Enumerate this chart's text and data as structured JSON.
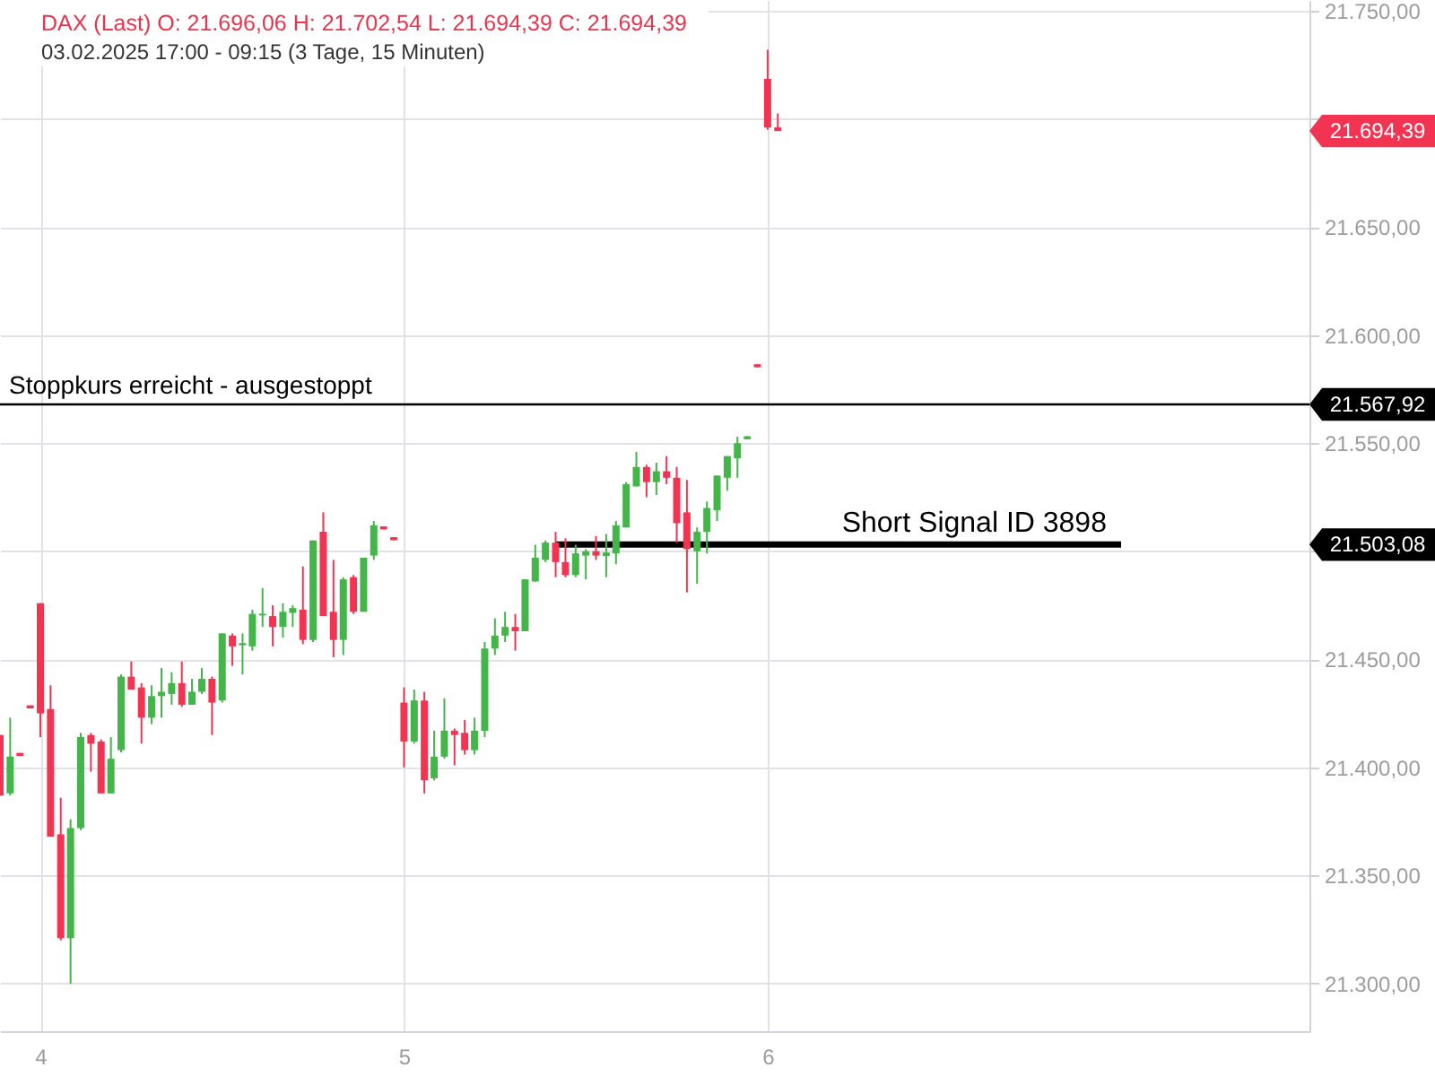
{
  "chart_data": {
    "type": "candlestick",
    "title": "DAX (Last)  O: 21.696,06  H: 21.702,54  L: 21.694,39  C: 21.694,39",
    "subtitle": "03.02.2025 17:00 - 09:15  (3 Tage, 15 Minuten)",
    "x": [
      3.889,
      3.917,
      3.944,
      3.972,
      4,
      4.028,
      4.056,
      4.083,
      4.111,
      4.139,
      4.167,
      4.194,
      4.222,
      4.25,
      4.278,
      4.306,
      4.333,
      4.361,
      4.389,
      4.417,
      4.444,
      4.472,
      4.5,
      4.528,
      4.556,
      4.583,
      4.611,
      4.639,
      4.667,
      4.694,
      4.722,
      4.75,
      4.778,
      4.806,
      4.833,
      4.861,
      4.889,
      4.917,
      4.944,
      4.972,
      5,
      5.028,
      5.056,
      5.083,
      5.111,
      5.139,
      5.167,
      5.194,
      5.222,
      5.25,
      5.278,
      5.306,
      5.333,
      5.361,
      5.389,
      5.417,
      5.444,
      5.472,
      5.5,
      5.528,
      5.556,
      5.583,
      5.611,
      5.639,
      5.667,
      5.694,
      5.722,
      5.75,
      5.778,
      5.806,
      5.833,
      5.861,
      5.889,
      5.917,
      5.944,
      5.972,
      6,
      6.028
    ],
    "ohlc": [
      [
        21415,
        21415,
        21387,
        21387
      ],
      [
        21388,
        21423,
        21387,
        21405
      ],
      [
        21406.7,
        21406.7,
        21405.3,
        21405.3
      ],
      [
        21428.7,
        21428.7,
        21427.3,
        21427.3
      ],
      [
        21476,
        21476,
        21414,
        21425
      ],
      [
        21427,
        21438,
        21368,
        21368
      ],
      [
        21369,
        21386,
        21320,
        21321
      ],
      [
        21321,
        21376,
        21300,
        21372
      ],
      [
        21372,
        21416,
        21371,
        21414
      ],
      [
        21415,
        21416,
        21398,
        21411
      ],
      [
        21412,
        21413,
        21388,
        21388
      ],
      [
        21388,
        21414,
        21388,
        21404
      ],
      [
        21408,
        21443,
        21407,
        21442
      ],
      [
        21442,
        21449,
        21436,
        21436
      ],
      [
        21437,
        21439,
        21411,
        21423
      ],
      [
        21423,
        21438,
        21420,
        21433
      ],
      [
        21433,
        21446,
        21423,
        21435
      ],
      [
        21434,
        21444,
        21429,
        21439
      ],
      [
        21439,
        21449,
        21428,
        21429
      ],
      [
        21429,
        21441,
        21429,
        21435
      ],
      [
        21435,
        21446,
        21434,
        21441
      ],
      [
        21441,
        21442,
        21415,
        21430
      ],
      [
        21431,
        21462,
        21430,
        21462
      ],
      [
        21461,
        21462,
        21447,
        21456
      ],
      [
        21456.5,
        21462,
        21443,
        21457.5
      ],
      [
        21456,
        21473,
        21454,
        21471
      ],
      [
        21470.3,
        21483,
        21465,
        21471.1
      ],
      [
        21470,
        21475,
        21456,
        21465
      ],
      [
        21465,
        21476,
        21460,
        21472
      ],
      [
        21471.5,
        21475,
        21465,
        21473.7
      ],
      [
        21473,
        21493,
        21457,
        21459
      ],
      [
        21459,
        21505,
        21458,
        21505
      ],
      [
        21509,
        21518,
        21470,
        21470
      ],
      [
        21472,
        21496,
        21451,
        21459
      ],
      [
        21459,
        21488,
        21452,
        21487
      ],
      [
        21488,
        21489,
        21471,
        21472
      ],
      [
        21472,
        21497,
        21472,
        21497
      ],
      [
        21498,
        21514,
        21496,
        21512
      ],
      [
        21511.5,
        21511.5,
        21510.1,
        21510.1
      ],
      [
        21506.5,
        21506.5,
        21505.1,
        21505.1
      ],
      [
        21430,
        21437,
        21400,
        21412
      ],
      [
        21412,
        21436,
        21411,
        21431
      ],
      [
        21431,
        21435,
        21388,
        21394
      ],
      [
        21395,
        21417,
        21394,
        21405
      ],
      [
        21405,
        21432,
        21404,
        21417
      ],
      [
        21417,
        21418,
        21401,
        21415
      ],
      [
        21416,
        21422,
        21406,
        21408
      ],
      [
        21408,
        21423,
        21406,
        21417
      ],
      [
        21417,
        21458,
        21414,
        21455
      ],
      [
        21455,
        21469,
        21452,
        21461
      ],
      [
        21461,
        21472,
        21458,
        21465
      ],
      [
        21465,
        21471,
        21454,
        21463
      ],
      [
        21463,
        21487,
        21463,
        21487
      ],
      [
        21486,
        21503,
        21486,
        21497
      ],
      [
        21496,
        21505,
        21495,
        21504
      ],
      [
        21504,
        21509,
        21488,
        21495
      ],
      [
        21495,
        21506,
        21488,
        21489
      ],
      [
        21489,
        21503,
        21488,
        21499
      ],
      [
        21498,
        21501,
        21487,
        21500
      ],
      [
        21500,
        21507,
        21496,
        21498
      ],
      [
        21497.8,
        21508,
        21488,
        21499.4
      ],
      [
        21499,
        21514,
        21494,
        21512
      ],
      [
        21511,
        21532,
        21511,
        21531
      ],
      [
        21530,
        21546,
        21530,
        21539
      ],
      [
        21539,
        21540,
        21525,
        21532
      ],
      [
        21532,
        21541,
        21526,
        21537
      ],
      [
        21537,
        21544,
        21531,
        21534
      ],
      [
        21534,
        21539,
        21504,
        21513
      ],
      [
        21518,
        21533,
        21481,
        21501
      ],
      [
        21500,
        21511,
        21485,
        21509
      ],
      [
        21509,
        21523,
        21499,
        21520
      ],
      [
        21519,
        21535,
        21514,
        21535
      ],
      [
        21534,
        21544,
        21528,
        21544
      ],
      [
        21543,
        21553,
        21534,
        21550
      ],
      [
        21551.8,
        21553.2,
        21551.8,
        21553.2
      ],
      [
        21586.5,
        21586.5,
        21585.1,
        21585.1
      ],
      [
        21718.5,
        21732,
        21695,
        21696
      ],
      [
        21696.06,
        21702.54,
        21694.39,
        21694.39
      ]
    ],
    "colors": [
      "#f23452",
      "#43b549",
      "#f23452",
      "#f23452",
      "#f23452",
      "#f23452",
      "#f23452",
      "#43b549",
      "#43b549",
      "#f23452",
      "#f23452",
      "#43b549",
      "#43b549",
      "#f23452",
      "#f23452",
      "#43b549",
      "#43b549",
      "#43b549",
      "#f23452",
      "#43b549",
      "#43b549",
      "#f23452",
      "#43b549",
      "#f23452",
      "#43b549",
      "#43b549",
      "#43b549",
      "#f23452",
      "#43b549",
      "#43b549",
      "#f23452",
      "#43b549",
      "#f23452",
      "#f23452",
      "#43b549",
      "#f23452",
      "#43b549",
      "#43b549",
      "#f23452",
      "#f23452",
      "#f23452",
      "#43b549",
      "#f23452",
      "#43b549",
      "#43b549",
      "#f23452",
      "#f23452",
      "#43b549",
      "#43b549",
      "#43b549",
      "#43b549",
      "#f23452",
      "#43b549",
      "#43b549",
      "#43b549",
      "#f23452",
      "#f23452",
      "#43b549",
      "#43b549",
      "#f23452",
      "#43b549",
      "#43b549",
      "#43b549",
      "#43b549",
      "#f23452",
      "#43b549",
      "#f23452",
      "#f23452",
      "#f23452",
      "#43b549",
      "#43b549",
      "#43b549",
      "#43b549",
      "#43b549",
      "#43b549",
      "#f23452",
      "#f23452",
      "#f23452"
    ],
    "xlim": [
      3.889,
      7.49
    ],
    "xticks": [
      4,
      5,
      6
    ],
    "ylim": [
      21278,
      21755
    ],
    "yticks": [
      {
        "value": 21750,
        "label": "21.750,00"
      },
      {
        "value": 21700,
        "label": null
      },
      {
        "value": 21694.39,
        "label": "21.694,39"
      },
      {
        "value": 21650,
        "label": "21.650,00"
      },
      {
        "value": 21600,
        "label": "21.600,00"
      },
      {
        "value": 21567.92,
        "label": "21.567,92"
      },
      {
        "value": 21550,
        "label": "21.550,00"
      },
      {
        "value": 21503.08,
        "label": "21.503,08"
      },
      {
        "value": 21500,
        "label": null
      },
      {
        "value": 21450,
        "label": "21.450,00"
      },
      {
        "value": 21400,
        "label": "21.400,00"
      },
      {
        "value": 21350,
        "label": "21.350,00"
      },
      {
        "value": 21300,
        "label": "21.300,00"
      }
    ],
    "grid": true,
    "ref_lines": [
      {
        "axis": "y",
        "value": 21567.92,
        "label": "Stoppkurs erreicht - ausgestoppt",
        "color": "#000000"
      }
    ],
    "series": [
      {
        "type": "line",
        "name": "Short Signal  ID 3898",
        "color": "#000000",
        "x": [
          5.417,
          6.972
        ],
        "values": [
          21503.08,
          21503.08
        ]
      }
    ]
  }
}
